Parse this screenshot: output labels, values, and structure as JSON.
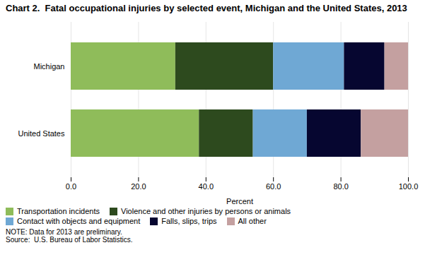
{
  "chart_data": {
    "type": "bar",
    "orientation": "horizontal",
    "stacked": true,
    "title": "Chart 2.  Fatal occupational injuries by selected event, Michigan and the United States, 2013",
    "categories": [
      "Michigan",
      "United States"
    ],
    "series": [
      {
        "name": "Transportation incidents",
        "color": "#8fbc5a",
        "values": [
          31.0,
          38.0
        ]
      },
      {
        "name": "Violence and other injuries by persons or animals",
        "color": "#2d4a1e",
        "values": [
          29.0,
          16.0
        ]
      },
      {
        "name": "Contact with objects and equipment",
        "color": "#6fa8d4",
        "values": [
          21.0,
          16.0
        ]
      },
      {
        "name": "Falls, slips, trips",
        "color": "#060630",
        "values": [
          12.0,
          16.0
        ]
      },
      {
        "name": "All other",
        "color": "#c4a0a0",
        "values": [
          7.0,
          14.0
        ]
      }
    ],
    "xlabel": "Percent",
    "xlim": [
      0,
      100
    ],
    "xticks": [
      {
        "value": 0,
        "label": "0.0"
      },
      {
        "value": 20,
        "label": "20.0"
      },
      {
        "value": 40,
        "label": "40.0"
      },
      {
        "value": 60,
        "label": "60.0"
      },
      {
        "value": 80,
        "label": "80.0"
      },
      {
        "value": 100,
        "label": "100.0"
      }
    ],
    "grid": true,
    "legend": "bottom",
    "caption": "NOTE: Data for 2013 are preliminary.\nSource:  U.S. Bureau of Labor Statistics."
  }
}
